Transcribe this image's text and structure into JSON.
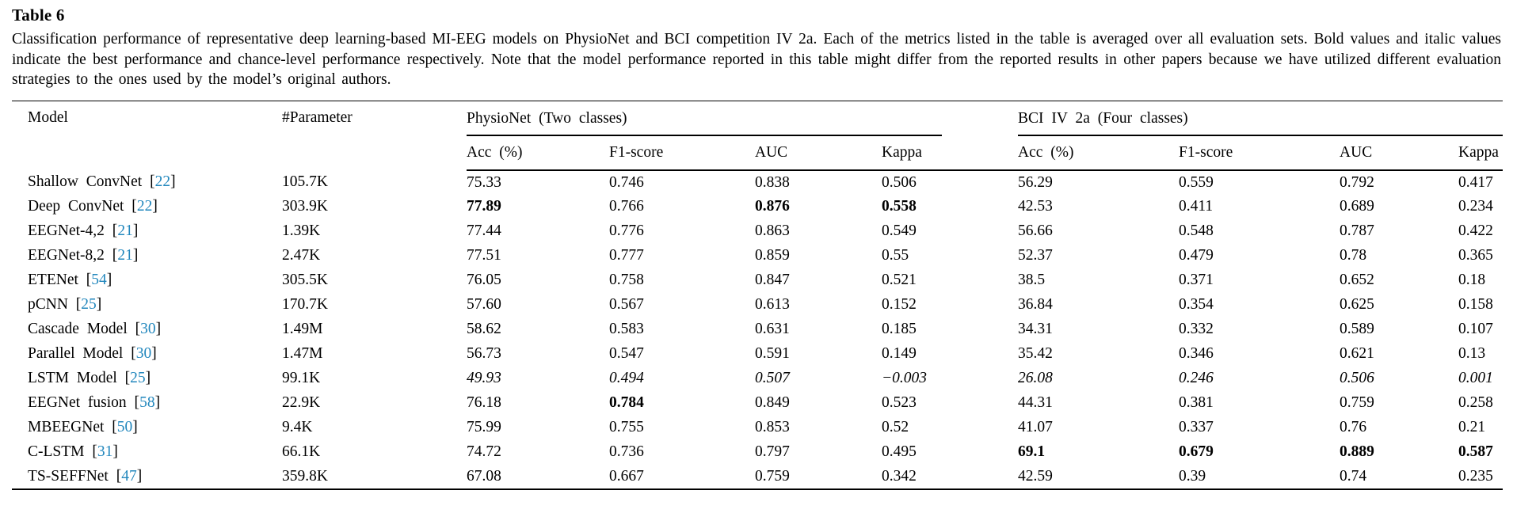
{
  "caption": {
    "label": "Table 6",
    "text": "Classification performance of representative deep learning-based MI-EEG models on PhysioNet and BCI competition IV 2a. Each of the metrics listed in the table is averaged over all evaluation sets. Bold values and italic values indicate the best performance and chance-level performance respectively. Note that the model performance reported in this table might differ from the reported results in other papers because we have utilized different evaluation strategies to the ones used by the model’s original authors."
  },
  "colors": {
    "citation_link": "#2287bd",
    "text": "#000000",
    "rule": "#000000"
  },
  "table": {
    "header": {
      "model": "Model",
      "parameter": "#Parameter",
      "groups": [
        {
          "label": "PhysioNet (Two classes)",
          "subcolumns": [
            "Acc (%)",
            "F1-score",
            "AUC",
            "Kappa"
          ]
        },
        {
          "label": "BCI IV 2a (Four classes)",
          "subcolumns": [
            "Acc (%)",
            "F1-score",
            "AUC",
            "Kappa"
          ]
        }
      ]
    },
    "rows": [
      {
        "model": "Shallow ConvNet",
        "ref": "22",
        "parameter": "105.7K",
        "physionet": [
          {
            "v": "75.33"
          },
          {
            "v": "0.746"
          },
          {
            "v": "0.838"
          },
          {
            "v": "0.506"
          }
        ],
        "bci_iv_2a": [
          {
            "v": "56.29"
          },
          {
            "v": "0.559"
          },
          {
            "v": "0.792"
          },
          {
            "v": "0.417"
          }
        ]
      },
      {
        "model": "Deep ConvNet",
        "ref": "22",
        "parameter": "303.9K",
        "physionet": [
          {
            "v": "77.89",
            "s": "bold"
          },
          {
            "v": "0.766"
          },
          {
            "v": "0.876",
            "s": "bold"
          },
          {
            "v": "0.558",
            "s": "bold"
          }
        ],
        "bci_iv_2a": [
          {
            "v": "42.53"
          },
          {
            "v": "0.411"
          },
          {
            "v": "0.689"
          },
          {
            "v": "0.234"
          }
        ]
      },
      {
        "model": "EEGNet-4,2",
        "ref": "21",
        "parameter": "1.39K",
        "physionet": [
          {
            "v": "77.44"
          },
          {
            "v": "0.776"
          },
          {
            "v": "0.863"
          },
          {
            "v": "0.549"
          }
        ],
        "bci_iv_2a": [
          {
            "v": "56.66"
          },
          {
            "v": "0.548"
          },
          {
            "v": "0.787"
          },
          {
            "v": "0.422"
          }
        ]
      },
      {
        "model": "EEGNet-8,2",
        "ref": "21",
        "parameter": "2.47K",
        "physionet": [
          {
            "v": "77.51"
          },
          {
            "v": "0.777"
          },
          {
            "v": "0.859"
          },
          {
            "v": "0.55"
          }
        ],
        "bci_iv_2a": [
          {
            "v": "52.37"
          },
          {
            "v": "0.479"
          },
          {
            "v": "0.78"
          },
          {
            "v": "0.365"
          }
        ]
      },
      {
        "model": "ETENet",
        "ref": "54",
        "parameter": "305.5K",
        "physionet": [
          {
            "v": "76.05"
          },
          {
            "v": "0.758"
          },
          {
            "v": "0.847"
          },
          {
            "v": "0.521"
          }
        ],
        "bci_iv_2a": [
          {
            "v": "38.5"
          },
          {
            "v": "0.371"
          },
          {
            "v": "0.652"
          },
          {
            "v": "0.18"
          }
        ]
      },
      {
        "model": "pCNN",
        "ref": "25",
        "parameter": "170.7K",
        "physionet": [
          {
            "v": "57.60"
          },
          {
            "v": "0.567"
          },
          {
            "v": "0.613"
          },
          {
            "v": "0.152"
          }
        ],
        "bci_iv_2a": [
          {
            "v": "36.84"
          },
          {
            "v": "0.354"
          },
          {
            "v": "0.625"
          },
          {
            "v": "0.158"
          }
        ]
      },
      {
        "model": "Cascade Model",
        "ref": "30",
        "parameter": "1.49M",
        "physionet": [
          {
            "v": "58.62"
          },
          {
            "v": "0.583"
          },
          {
            "v": "0.631"
          },
          {
            "v": "0.185"
          }
        ],
        "bci_iv_2a": [
          {
            "v": "34.31"
          },
          {
            "v": "0.332"
          },
          {
            "v": "0.589"
          },
          {
            "v": "0.107"
          }
        ]
      },
      {
        "model": "Parallel Model",
        "ref": "30",
        "parameter": "1.47M",
        "physionet": [
          {
            "v": "56.73"
          },
          {
            "v": "0.547"
          },
          {
            "v": "0.591"
          },
          {
            "v": "0.149"
          }
        ],
        "bci_iv_2a": [
          {
            "v": "35.42"
          },
          {
            "v": "0.346"
          },
          {
            "v": "0.621"
          },
          {
            "v": "0.13"
          }
        ]
      },
      {
        "model": "LSTM Model",
        "ref": "25",
        "parameter": "99.1K",
        "physionet": [
          {
            "v": "49.93",
            "s": "italic"
          },
          {
            "v": "0.494",
            "s": "italic"
          },
          {
            "v": "0.507",
            "s": "italic"
          },
          {
            "v": "−0.003",
            "s": "italic"
          }
        ],
        "bci_iv_2a": [
          {
            "v": "26.08",
            "s": "italic"
          },
          {
            "v": "0.246",
            "s": "italic"
          },
          {
            "v": "0.506",
            "s": "italic"
          },
          {
            "v": "0.001",
            "s": "italic"
          }
        ]
      },
      {
        "model": "EEGNet fusion",
        "ref": "58",
        "parameter": "22.9K",
        "physionet": [
          {
            "v": "76.18"
          },
          {
            "v": "0.784",
            "s": "bold"
          },
          {
            "v": "0.849"
          },
          {
            "v": "0.523"
          }
        ],
        "bci_iv_2a": [
          {
            "v": "44.31"
          },
          {
            "v": "0.381"
          },
          {
            "v": "0.759"
          },
          {
            "v": "0.258"
          }
        ]
      },
      {
        "model": "MBEEGNet",
        "ref": "50",
        "parameter": "9.4K",
        "physionet": [
          {
            "v": "75.99"
          },
          {
            "v": "0.755"
          },
          {
            "v": "0.853"
          },
          {
            "v": "0.52"
          }
        ],
        "bci_iv_2a": [
          {
            "v": "41.07"
          },
          {
            "v": "0.337"
          },
          {
            "v": "0.76"
          },
          {
            "v": "0.21"
          }
        ]
      },
      {
        "model": "C-LSTM",
        "ref": "31",
        "parameter": "66.1K",
        "physionet": [
          {
            "v": "74.72"
          },
          {
            "v": "0.736"
          },
          {
            "v": "0.797"
          },
          {
            "v": "0.495"
          }
        ],
        "bci_iv_2a": [
          {
            "v": "69.1",
            "s": "bold"
          },
          {
            "v": "0.679",
            "s": "bold"
          },
          {
            "v": "0.889",
            "s": "bold"
          },
          {
            "v": "0.587",
            "s": "bold"
          }
        ]
      },
      {
        "model": "TS-SEFFNet",
        "ref": "47",
        "parameter": "359.8K",
        "physionet": [
          {
            "v": "67.08"
          },
          {
            "v": "0.667"
          },
          {
            "v": "0.759"
          },
          {
            "v": "0.342"
          }
        ],
        "bci_iv_2a": [
          {
            "v": "42.59"
          },
          {
            "v": "0.39"
          },
          {
            "v": "0.74"
          },
          {
            "v": "0.235"
          }
        ]
      }
    ]
  }
}
